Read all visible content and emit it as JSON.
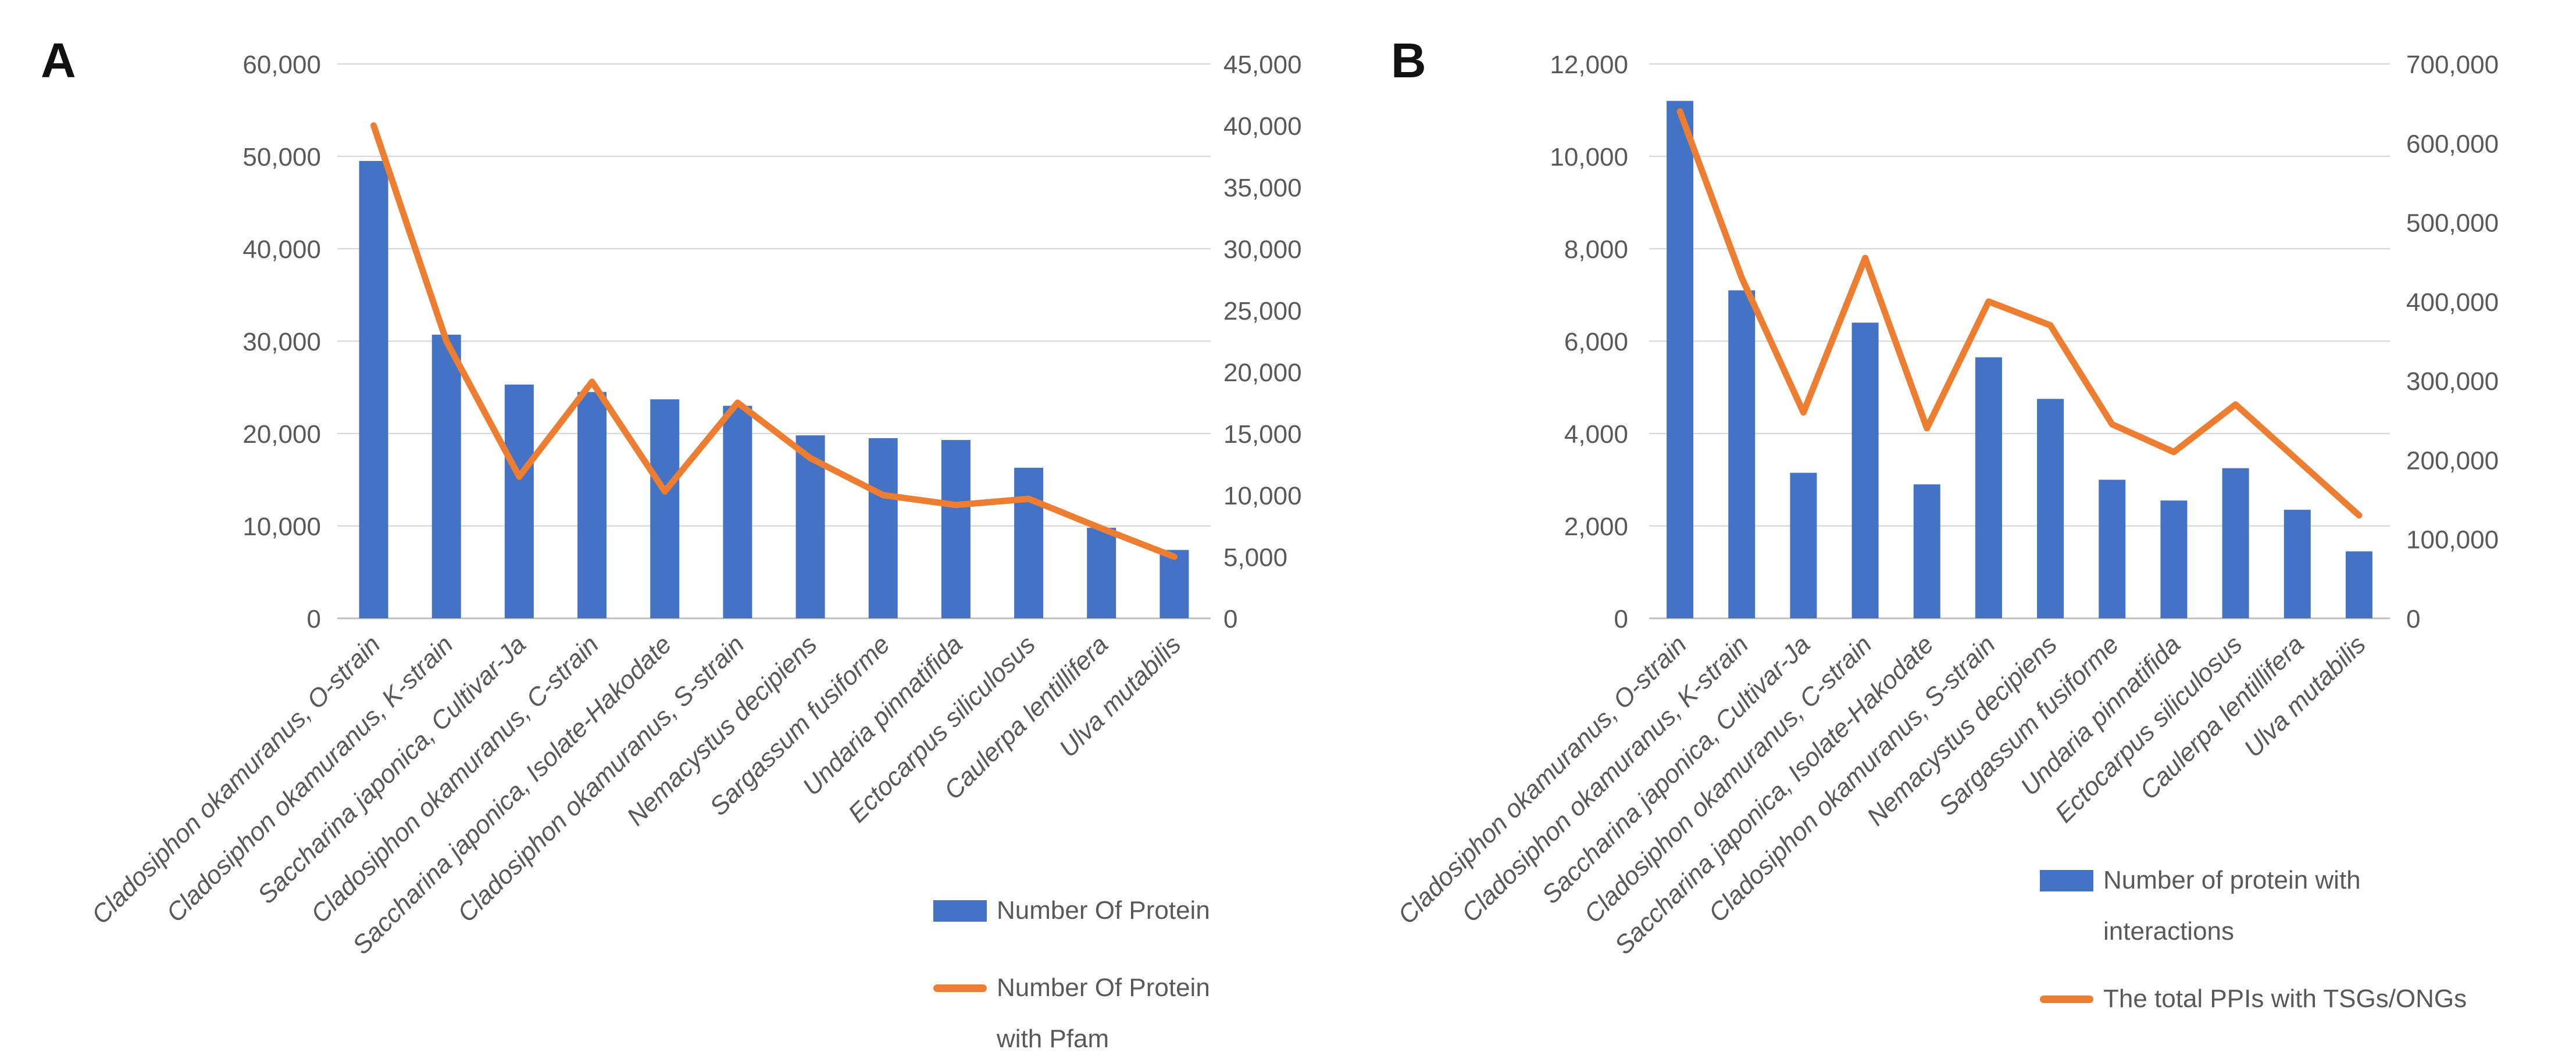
{
  "panels": [
    {
      "letter": "A"
    },
    {
      "letter": "B"
    }
  ],
  "colors": {
    "bar": "#4472C4",
    "line": "#ED7D31",
    "text": "#595959",
    "gridline": "#D9D9D9",
    "axis_line": "#BFBFBF"
  },
  "chart_data": [
    {
      "type": "bar+line combo, dual axis",
      "panel": "A",
      "categories": [
        "Cladosiphon okamuranus, O-strain",
        "Cladosiphon okamuranus, K-strain",
        "Saccharina japonica, Cultivar-Ja",
        "Cladosiphon okamuranus, C-strain",
        "Saccharina japonica, Isolate-Hakodate",
        "Cladosiphon okamuranus, S-strain",
        "Nemacystus decipiens",
        "Sargassum fusiforme",
        "Undaria pinnatifida",
        "Ectocarpus siliculosus",
        "Caulerpa lentillifera",
        "Ulva mutabilis"
      ],
      "series": [
        {
          "name": "Number Of Protein",
          "kind": "bar",
          "axis": "left",
          "values": [
            49500,
            30700,
            25300,
            24500,
            23700,
            23000,
            19800,
            19500,
            19300,
            16300,
            9800,
            7400
          ],
          "legend_lines": [
            "Number Of Protein"
          ]
        },
        {
          "name": "Number Of Protein with Pfam",
          "kind": "line",
          "axis": "right",
          "values": [
            40000,
            22500,
            11500,
            19200,
            10300,
            17500,
            13000,
            10000,
            9200,
            9700,
            7300,
            5000
          ],
          "legend_lines": [
            "Number Of Protein",
            "with Pfam"
          ]
        }
      ],
      "left_axis": {
        "min": 0,
        "max": 60000,
        "step": 10000
      },
      "right_axis": {
        "min": 0,
        "max": 45000,
        "step": 5000
      },
      "grid": "horizontal",
      "legend_position": "bottom-right"
    },
    {
      "type": "bar+line combo, dual axis",
      "panel": "B",
      "categories": [
        "Cladosiphon okamuranus, O-strain",
        "Cladosiphon okamuranus, K-strain",
        "Saccharina japonica, Cultivar-Ja",
        "Cladosiphon okamuranus, C-strain",
        "Saccharina japonica, Isolate-Hakodate",
        "Cladosiphon okamuranus, S-strain",
        "Nemacystus decipiens",
        "Sargassum fusiforme",
        "Undaria pinnatifida",
        "Ectocarpus siliculosus",
        "Caulerpa lentillifera",
        "Ulva mutabilis"
      ],
      "series": [
        {
          "name": "Number of protein with interactions",
          "kind": "bar",
          "axis": "left",
          "values": [
            11200,
            7100,
            3150,
            6400,
            2900,
            5650,
            4750,
            3000,
            2550,
            3250,
            2350,
            1450
          ],
          "legend_lines": [
            "Number of protein with",
            "interactions"
          ]
        },
        {
          "name": "The total PPIs with TSGs/ONGs",
          "kind": "line",
          "axis": "right",
          "values": [
            640000,
            430000,
            260000,
            455000,
            240000,
            400000,
            370000,
            245000,
            210000,
            270000,
            200000,
            130000
          ],
          "legend_lines": [
            "The total PPIs with TSGs/ONGs"
          ]
        }
      ],
      "left_axis": {
        "min": 0,
        "max": 12000,
        "step": 2000
      },
      "right_axis": {
        "min": 0,
        "max": 700000,
        "step": 100000
      },
      "grid": "horizontal",
      "legend_position": "bottom-right"
    }
  ]
}
